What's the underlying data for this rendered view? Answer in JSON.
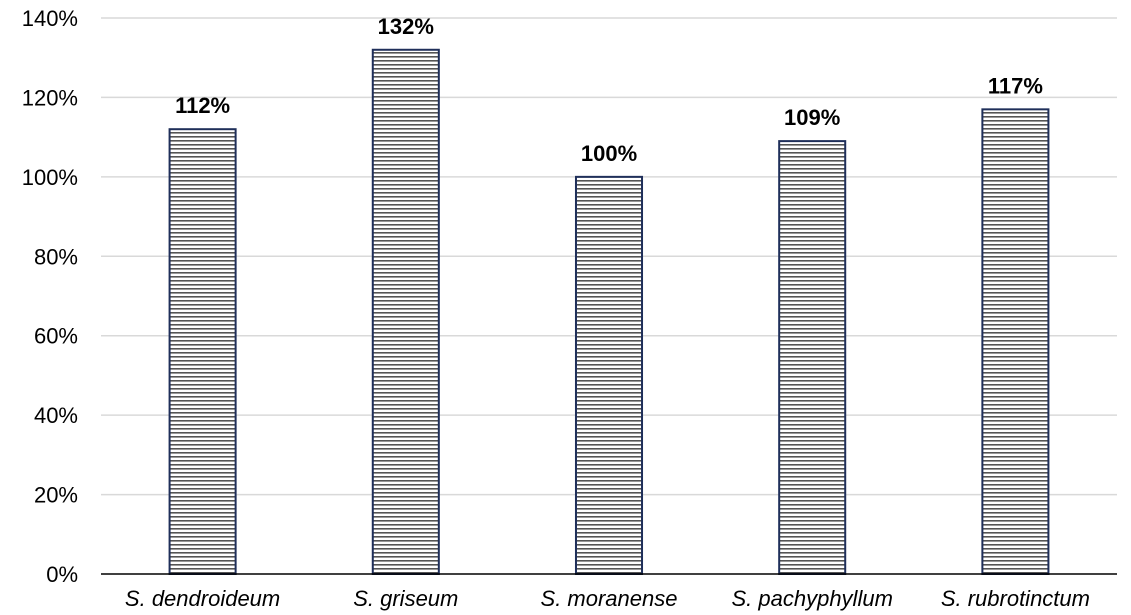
{
  "chart_data": {
    "type": "bar",
    "categories": [
      "S. dendroideum",
      "S. griseum",
      "S. moranense",
      "S. pachyphyllum",
      "S. rubrotinctum"
    ],
    "values": [
      112,
      132,
      100,
      109,
      117
    ],
    "data_labels": [
      "112%",
      "132%",
      "100%",
      "109%",
      "117%"
    ],
    "ylim": [
      0,
      140
    ],
    "yticks": [
      0,
      20,
      40,
      60,
      80,
      100,
      120,
      140
    ],
    "ytick_labels": [
      "0%",
      "20%",
      "40%",
      "60%",
      "80%",
      "100%",
      "120%",
      "140%"
    ],
    "title": "",
    "xlabel": "",
    "ylabel": "",
    "grid": true,
    "legend": "none",
    "colors": {
      "bar_border": "#1f2f5a",
      "bar_stripe": "#555555",
      "bar_fill": "#ffffff",
      "grid": "#d9d9d9",
      "axis": "#000000"
    }
  }
}
